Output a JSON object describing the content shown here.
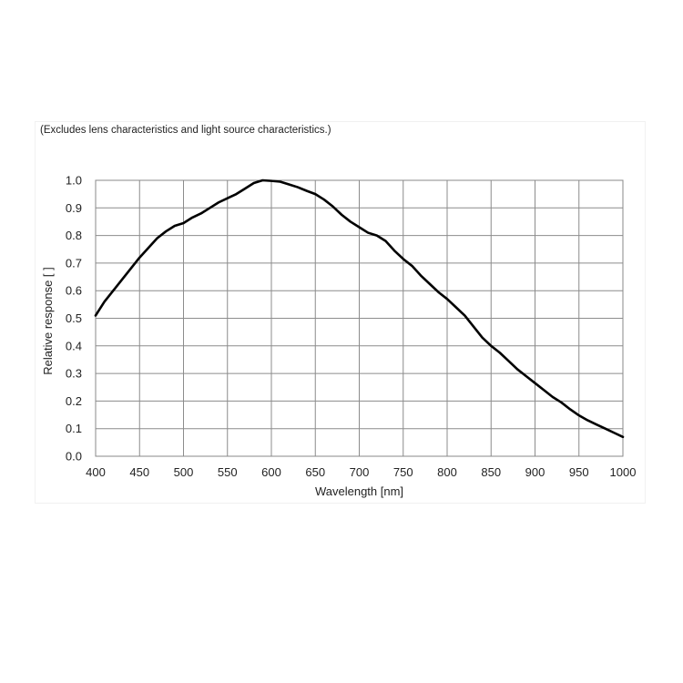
{
  "chart_data": {
    "type": "line",
    "title": "",
    "subtitle": "(Excludes lens characteristics and light source characteristics.)",
    "xlabel": "Wavelength [nm]",
    "ylabel": "Relative response [ ]",
    "xlim": [
      400,
      1000
    ],
    "ylim": [
      0.0,
      1.0
    ],
    "xticks": [
      400,
      450,
      500,
      550,
      600,
      650,
      700,
      750,
      800,
      850,
      900,
      950,
      1000
    ],
    "yticks": [
      0.0,
      0.1,
      0.2,
      0.3,
      0.4,
      0.5,
      0.6,
      0.7,
      0.8,
      0.9,
      1.0
    ],
    "xtick_labels": [
      "400",
      "450",
      "500",
      "550",
      "600",
      "650",
      "700",
      "750",
      "800",
      "850",
      "900",
      "950",
      "1000"
    ],
    "ytick_labels": [
      "0.0",
      "0.1",
      "0.2",
      "0.3",
      "0.4",
      "0.5",
      "0.6",
      "0.7",
      "0.8",
      "0.9",
      "1.0"
    ],
    "grid": true,
    "series": [
      {
        "color": "#000000",
        "x": [
          400,
          410,
          420,
          430,
          440,
          450,
          460,
          470,
          480,
          490,
          500,
          510,
          520,
          530,
          540,
          550,
          560,
          570,
          580,
          590,
          600,
          610,
          620,
          630,
          640,
          650,
          660,
          670,
          680,
          690,
          700,
          710,
          720,
          730,
          740,
          750,
          760,
          770,
          780,
          790,
          800,
          810,
          820,
          830,
          840,
          850,
          860,
          870,
          880,
          890,
          900,
          910,
          920,
          930,
          940,
          950,
          960,
          970,
          980,
          990,
          1000
        ],
        "y": [
          0.51,
          0.56,
          0.6,
          0.64,
          0.68,
          0.72,
          0.755,
          0.79,
          0.815,
          0.835,
          0.845,
          0.865,
          0.88,
          0.9,
          0.92,
          0.935,
          0.95,
          0.97,
          0.99,
          1.0,
          0.998,
          0.995,
          0.985,
          0.975,
          0.962,
          0.95,
          0.93,
          0.905,
          0.875,
          0.85,
          0.83,
          0.81,
          0.8,
          0.78,
          0.745,
          0.715,
          0.69,
          0.655,
          0.625,
          0.595,
          0.57,
          0.54,
          0.51,
          0.47,
          0.43,
          0.4,
          0.375,
          0.345,
          0.315,
          0.29,
          0.265,
          0.24,
          0.215,
          0.195,
          0.17,
          0.148,
          0.13,
          0.115,
          0.1,
          0.085,
          0.07
        ]
      }
    ]
  }
}
